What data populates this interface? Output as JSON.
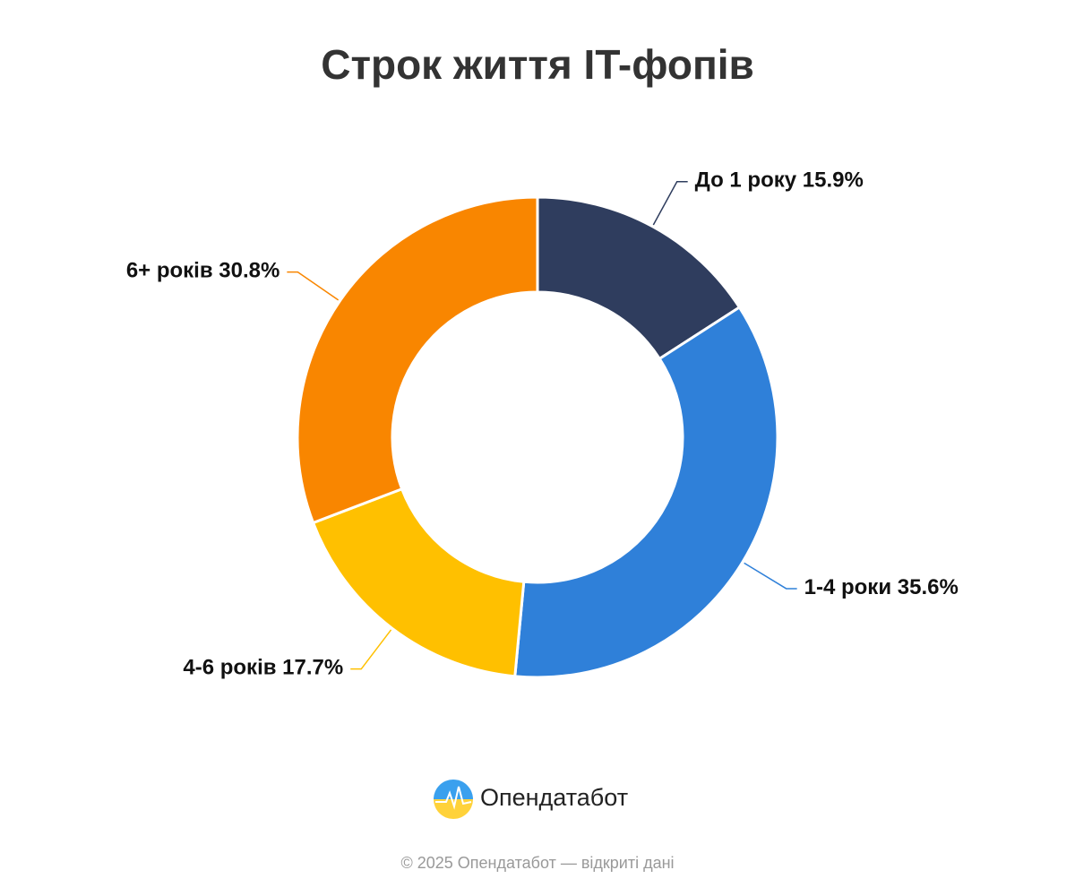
{
  "chart_data": {
    "type": "donut",
    "title": "Строк життя IT-фопів",
    "categories": [
      "До 1 року",
      "1-4 роки",
      "4-6 років",
      "6+ років"
    ],
    "values": [
      15.9,
      35.6,
      17.7,
      30.8
    ],
    "value_labels": [
      "15.9%",
      "35.6%",
      "17.7%",
      "30.8%"
    ],
    "colors": [
      "#2f3d5e",
      "#2f80d9",
      "#ffc000",
      "#f98600"
    ]
  },
  "brand": "Опендатабот",
  "footer": "© 2025 Опендатабот — відкриті дані"
}
